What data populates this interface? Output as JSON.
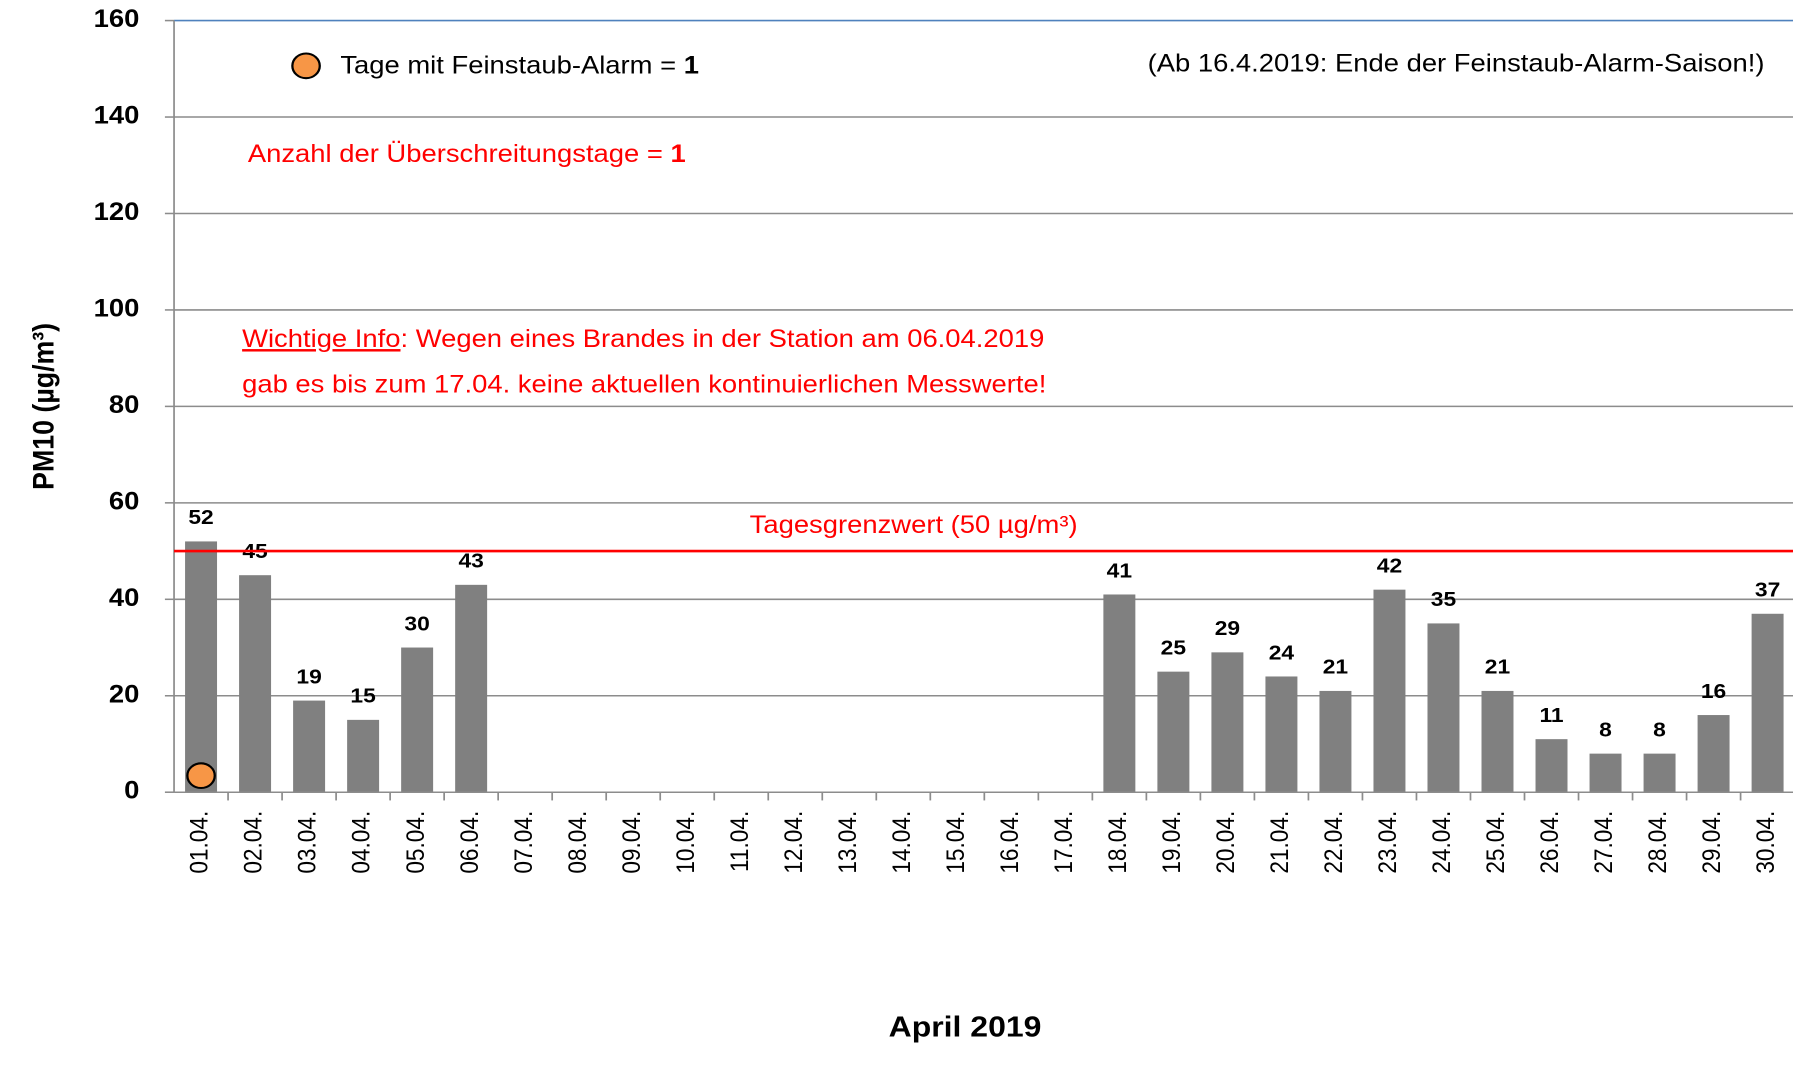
{
  "chart_data": {
    "type": "bar",
    "x_label": "April 2019",
    "y_label": "PM10 (µg/m³)",
    "categories": [
      "01.04.",
      "02.04.",
      "03.04.",
      "04.04.",
      "05.04.",
      "06.04.",
      "07.04.",
      "08.04.",
      "09.04.",
      "10.04.",
      "11.04.",
      "12.04.",
      "13.04.",
      "14.04.",
      "15.04.",
      "16.04.",
      "17.04.",
      "18.04.",
      "19.04.",
      "20.04.",
      "21.04.",
      "22.04.",
      "23.04.",
      "24.04.",
      "25.04.",
      "26.04.",
      "27.04.",
      "28.04.",
      "29.04.",
      "30.04."
    ],
    "values": [
      52,
      45,
      19,
      15,
      30,
      43,
      null,
      null,
      null,
      null,
      null,
      null,
      null,
      null,
      null,
      null,
      null,
      41,
      25,
      29,
      24,
      21,
      42,
      35,
      21,
      11,
      8,
      8,
      16,
      37
    ],
    "color": "#808080",
    "alarm": {
      "name": "Tage mit Feinstaub-Alarm =",
      "count": 1,
      "color": "#f79646",
      "values": [
        3,
        null,
        null,
        null,
        null,
        null,
        null,
        null,
        null,
        null,
        null,
        null,
        null,
        null,
        null,
        null,
        null,
        null,
        null,
        null,
        null,
        null,
        null,
        null,
        null,
        null,
        null,
        null,
        null,
        null
      ]
    },
    "exceedance": {
      "text": "Anzahl der Überschreitungstage =",
      "count": 1
    },
    "season_note": "(Ab 16.4.2019: Ende der Feinstaub-Alarm-Saison!)",
    "info": {
      "link": "Wichtige Info",
      "line1": ": Wegen eines Brandes in der Station am 06.04.2019",
      "line2": "gab es bis zum 17.04. keine aktuellen kontinuierlichen Messwerte!"
    },
    "threshold": {
      "value": 50,
      "label": "Tagesgrenzwert (50 µg/m³)",
      "color": "#ff0000"
    },
    "ylim": [
      0,
      160
    ],
    "yticks": [
      0,
      20,
      40,
      60,
      80,
      100,
      120,
      140,
      160
    ],
    "grid": true
  }
}
